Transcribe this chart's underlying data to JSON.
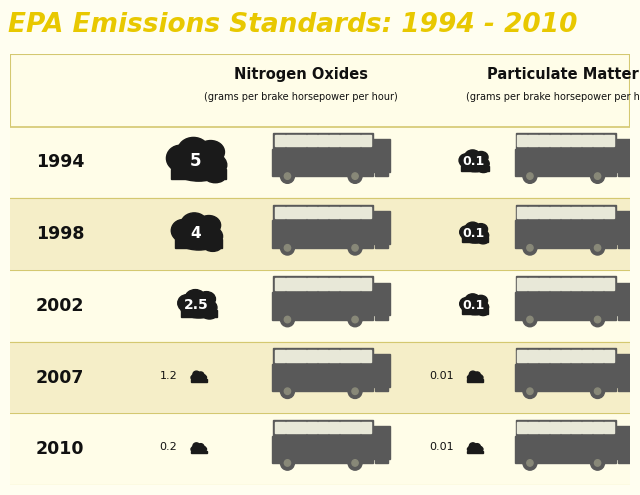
{
  "title": "EPA Emissions Standards: 1994 - 2010",
  "title_color": "#E8C800",
  "background_color": "#FFFEF0",
  "panel_bg": "#FFFDE8",
  "border_color": "#D4C870",
  "years": [
    "1994",
    "1998",
    "2002",
    "2007",
    "2010"
  ],
  "nox_values": [
    "5",
    "4",
    "2.5",
    "1.2",
    "0.2"
  ],
  "pm_values": [
    "0.1",
    "0.1",
    "0.1",
    "0.01",
    "0.01"
  ],
  "nox_cloud_scales": [
    1.0,
    0.85,
    0.65,
    0.28,
    0.2
  ],
  "pm_cloud_scales": [
    0.5,
    0.48,
    0.48,
    0.2,
    0.2
  ],
  "col1_header": "Nitrogen Oxides",
  "col1_sub": "(grams per brake horsepower per hour)",
  "col2_header": "Particulate Matter",
  "col2_sub": "(grams per brake horsepower per hour)",
  "bus_color": "#595959",
  "cloud_color": "#1a1a1a",
  "year_color": "#111111",
  "text_color": "#111111",
  "header_bg": "#FFFDE8",
  "row_colors_alt": [
    "#FFFDE8",
    "#F5EEC8",
    "#FFFDE8",
    "#F5EEC8",
    "#FFFDE8"
  ]
}
